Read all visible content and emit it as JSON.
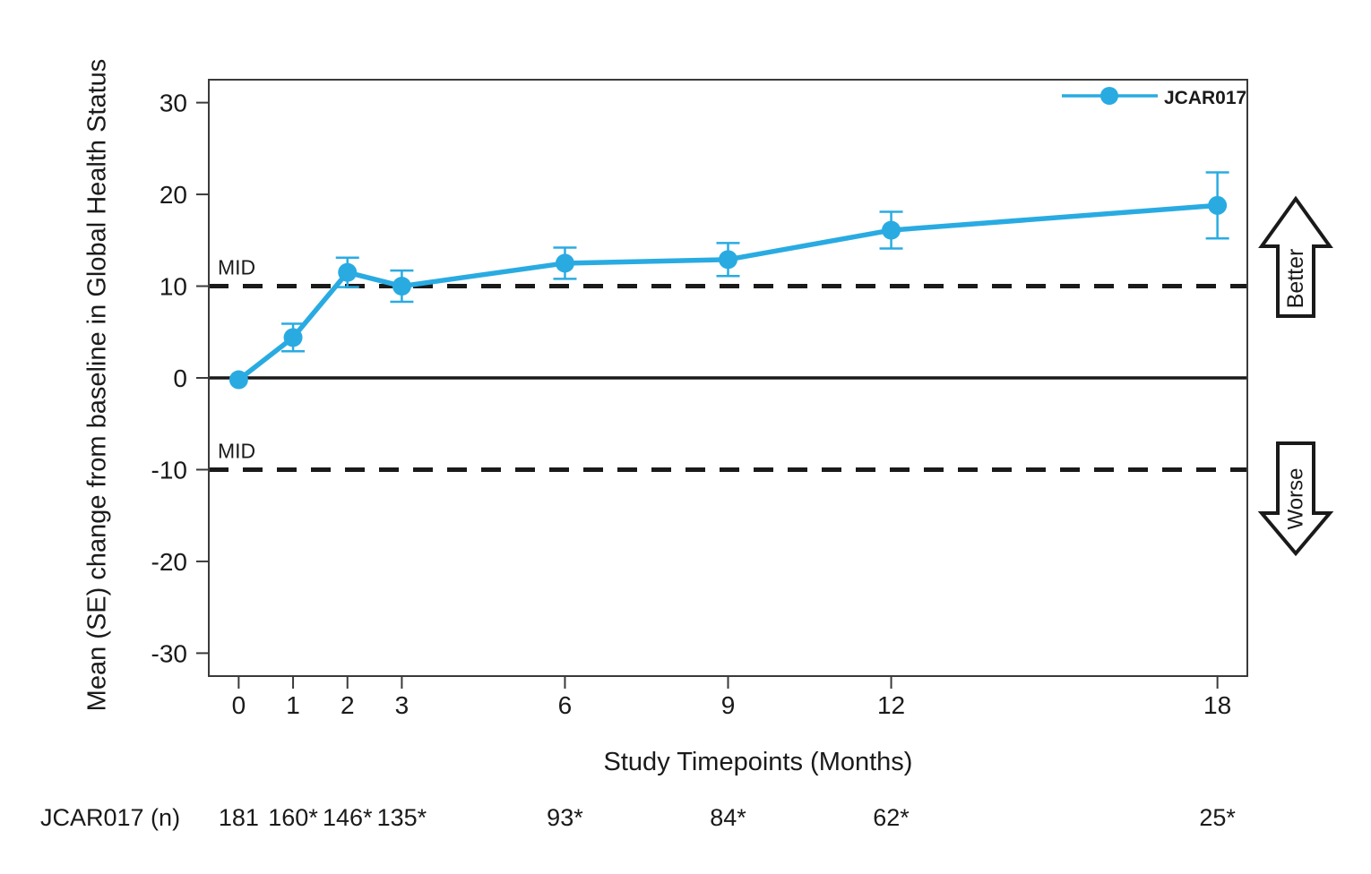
{
  "figure": {
    "background": "#ffffff",
    "colors": {
      "series": "#29ABE2",
      "frame": "#3a3a3a",
      "text": "#1a1a1a",
      "reference": "#1a1a1a",
      "arrow_fill": "#ffffff"
    },
    "legend": {
      "label": "JCAR017"
    },
    "arrows": {
      "up_label": "Better",
      "down_label": "Worse"
    },
    "mid_label": "MID",
    "n_row": {
      "label": "JCAR017 (n)",
      "values": [
        "181",
        "160*",
        "146*",
        "135*",
        "93*",
        "84*",
        "62*",
        "25*"
      ]
    }
  },
  "chart_data": {
    "type": "line",
    "title": "",
    "xlabel": "Study Timepoints (Months)",
    "ylabel": "Mean (SE) change from baseline in Global Health Status",
    "x": [
      0,
      1,
      2,
      3,
      6,
      9,
      12,
      18
    ],
    "x_tick_labels": [
      "0",
      "1",
      "2",
      "3",
      "6",
      "9",
      "12",
      "18"
    ],
    "y_ticks": [
      30,
      20,
      10,
      0,
      -10,
      -20,
      -30
    ],
    "ylim": [
      -32.5,
      32.5
    ],
    "xlim": [
      -0.55,
      18.55
    ],
    "grid": false,
    "legend_position": "top-right-inside",
    "series": [
      {
        "name": "JCAR017",
        "color": "#29ABE2",
        "values": [
          -0.2,
          4.4,
          11.5,
          10.0,
          12.5,
          12.9,
          16.1,
          18.8
        ],
        "se": [
          0,
          1.5,
          1.6,
          1.7,
          1.7,
          1.8,
          2.0,
          3.6
        ]
      }
    ],
    "reference_lines": [
      {
        "y": 10,
        "style": "dashed",
        "label": "MID"
      },
      {
        "y": 0,
        "style": "solid",
        "label": ""
      },
      {
        "y": -10,
        "style": "dashed",
        "label": "MID"
      }
    ],
    "annotations": [
      {
        "text": "Better",
        "arrow": "up",
        "side": "right"
      },
      {
        "text": "Worse",
        "arrow": "down",
        "side": "right"
      }
    ],
    "n_counts": {
      "label": "JCAR017 (n)",
      "values": [
        "181",
        "160*",
        "146*",
        "135*",
        "93*",
        "84*",
        "62*",
        "25*"
      ]
    }
  }
}
